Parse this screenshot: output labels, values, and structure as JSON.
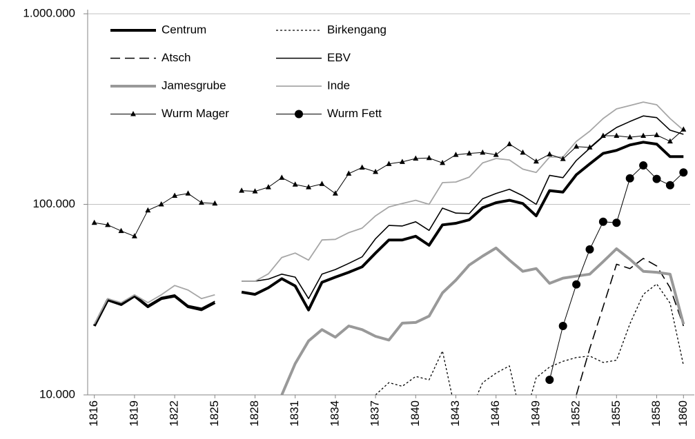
{
  "chart_data": {
    "type": "line",
    "yscale": "log",
    "grid": true,
    "legend": "top-left",
    "x": [
      1816,
      1817,
      1818,
      1819,
      1820,
      1821,
      1822,
      1823,
      1824,
      1825,
      1826,
      1827,
      1828,
      1829,
      1830,
      1831,
      1832,
      1833,
      1834,
      1835,
      1836,
      1837,
      1838,
      1839,
      1840,
      1841,
      1842,
      1843,
      1844,
      1845,
      1846,
      1847,
      1848,
      1849,
      1850,
      1851,
      1852,
      1853,
      1854,
      1855,
      1856,
      1857,
      1858,
      1859,
      1860
    ],
    "xlim": [
      1815.5,
      1860.5
    ],
    "xticks": [
      1816,
      1819,
      1822,
      1825,
      1828,
      1831,
      1834,
      1837,
      1840,
      1843,
      1846,
      1849,
      1852,
      1855,
      1858,
      1860
    ],
    "ylim": [
      10000,
      1000000
    ],
    "yticks": [
      {
        "value": 10000,
        "label": "10.000"
      },
      {
        "value": 100000,
        "label": "100.000"
      },
      {
        "value": 1000000,
        "label": "1.000.000"
      }
    ],
    "series": [
      {
        "name": "Centrum",
        "color": "#000000",
        "width": 4,
        "dash": "",
        "marker": "none",
        "values": [
          23000,
          31500,
          29800,
          33000,
          29000,
          32000,
          33000,
          29000,
          28000,
          30500,
          null,
          34600,
          33700,
          36500,
          40700,
          37300,
          27900,
          39000,
          41500,
          44000,
          47000,
          55500,
          65000,
          65000,
          68000,
          61000,
          78000,
          79500,
          83000,
          96000,
          102000,
          105000,
          101000,
          87000,
          118000,
          116000,
          143000,
          163000,
          185000,
          192000,
          205000,
          212000,
          207000,
          178000,
          178000
        ]
      },
      {
        "name": "Birkengang",
        "color": "#000000",
        "width": 1.3,
        "dash": "3 3",
        "marker": "none",
        "values": [
          null,
          null,
          null,
          null,
          null,
          null,
          null,
          null,
          null,
          null,
          null,
          null,
          null,
          null,
          null,
          null,
          null,
          null,
          null,
          null,
          null,
          10000,
          11600,
          11100,
          12500,
          12000,
          17000,
          8000,
          8000,
          11600,
          13000,
          14200,
          7000,
          12300,
          14000,
          15000,
          15700,
          16000,
          14800,
          15200,
          23600,
          33700,
          38200,
          30300,
          14300
        ]
      },
      {
        "name": "Atsch",
        "color": "#000000",
        "width": 1.6,
        "dash": "14 7",
        "marker": "none",
        "values": [
          null,
          null,
          null,
          null,
          null,
          null,
          null,
          null,
          null,
          null,
          null,
          null,
          null,
          null,
          null,
          null,
          null,
          null,
          null,
          null,
          null,
          null,
          null,
          null,
          null,
          null,
          null,
          null,
          null,
          null,
          null,
          null,
          null,
          null,
          null,
          null,
          10000,
          17500,
          29000,
          48500,
          46000,
          52000,
          47500,
          36500,
          23000
        ]
      },
      {
        "name": "EBV",
        "color": "#000000",
        "width": 1.6,
        "dash": "",
        "marker": "none",
        "values": [
          23500,
          32000,
          30200,
          33500,
          29500,
          32500,
          33500,
          29500,
          28500,
          31000,
          null,
          39500,
          39500,
          40500,
          43000,
          41500,
          32000,
          43000,
          45500,
          49000,
          53000,
          66000,
          77500,
          77000,
          81000,
          73000,
          95500,
          90000,
          89500,
          107000,
          114000,
          120000,
          111000,
          100000,
          142000,
          138000,
          170000,
          197000,
          227000,
          253000,
          272000,
          291000,
          285000,
          245000,
          233000
        ]
      },
      {
        "name": "Jamesgrube",
        "color": "#999999",
        "width": 4,
        "dash": "",
        "marker": "none",
        "values": [
          null,
          null,
          null,
          null,
          null,
          null,
          null,
          null,
          null,
          null,
          null,
          null,
          null,
          null,
          10000,
          14600,
          19200,
          22000,
          20100,
          23000,
          22000,
          20300,
          19400,
          23800,
          24000,
          25900,
          34300,
          40000,
          48000,
          53500,
          59000,
          51000,
          44500,
          46000,
          38500,
          41000,
          42000,
          43000,
          50000,
          58500,
          51500,
          44500,
          44000,
          43000,
          23500
        ]
      },
      {
        "name": "Inde",
        "color": "#a6a6a6",
        "width": 1.8,
        "dash": "",
        "marker": "none",
        "values": [
          23500,
          32000,
          30500,
          33500,
          30500,
          33500,
          37500,
          35500,
          32000,
          33500,
          null,
          39500,
          39500,
          43200,
          52600,
          55500,
          51000,
          65000,
          65500,
          71000,
          75000,
          87000,
          97000,
          101000,
          105000,
          100000,
          130000,
          131000,
          139000,
          165000,
          174000,
          171000,
          153000,
          147000,
          177000,
          177000,
          214000,
          242000,
          282000,
          317000,
          330000,
          344000,
          333000,
          282000,
          245000
        ]
      },
      {
        "name": "Wurm Mager",
        "color": "#000000",
        "width": 1,
        "dash": "",
        "marker": "triangle",
        "values": [
          80000,
          78000,
          72500,
          68000,
          93000,
          100000,
          111000,
          114000,
          102000,
          101000,
          null,
          118000,
          117000,
          123000,
          138000,
          127000,
          123000,
          128000,
          114000,
          145000,
          156000,
          148000,
          163000,
          167000,
          174000,
          175000,
          165000,
          182000,
          185000,
          187000,
          182000,
          207000,
          187000,
          168000,
          183000,
          173000,
          201000,
          199000,
          229000,
          229000,
          225000,
          229000,
          231000,
          214000,
          247000
        ]
      },
      {
        "name": "Wurm Fett",
        "color": "#000000",
        "width": 1,
        "dash": "",
        "marker": "circle",
        "values": [
          null,
          null,
          null,
          null,
          null,
          null,
          null,
          null,
          null,
          null,
          null,
          null,
          null,
          null,
          null,
          null,
          null,
          null,
          null,
          null,
          null,
          null,
          null,
          null,
          null,
          null,
          null,
          null,
          null,
          null,
          null,
          null,
          null,
          null,
          12000,
          23000,
          38000,
          58000,
          81000,
          80000,
          137000,
          160000,
          136000,
          126000,
          147000
        ]
      }
    ]
  }
}
